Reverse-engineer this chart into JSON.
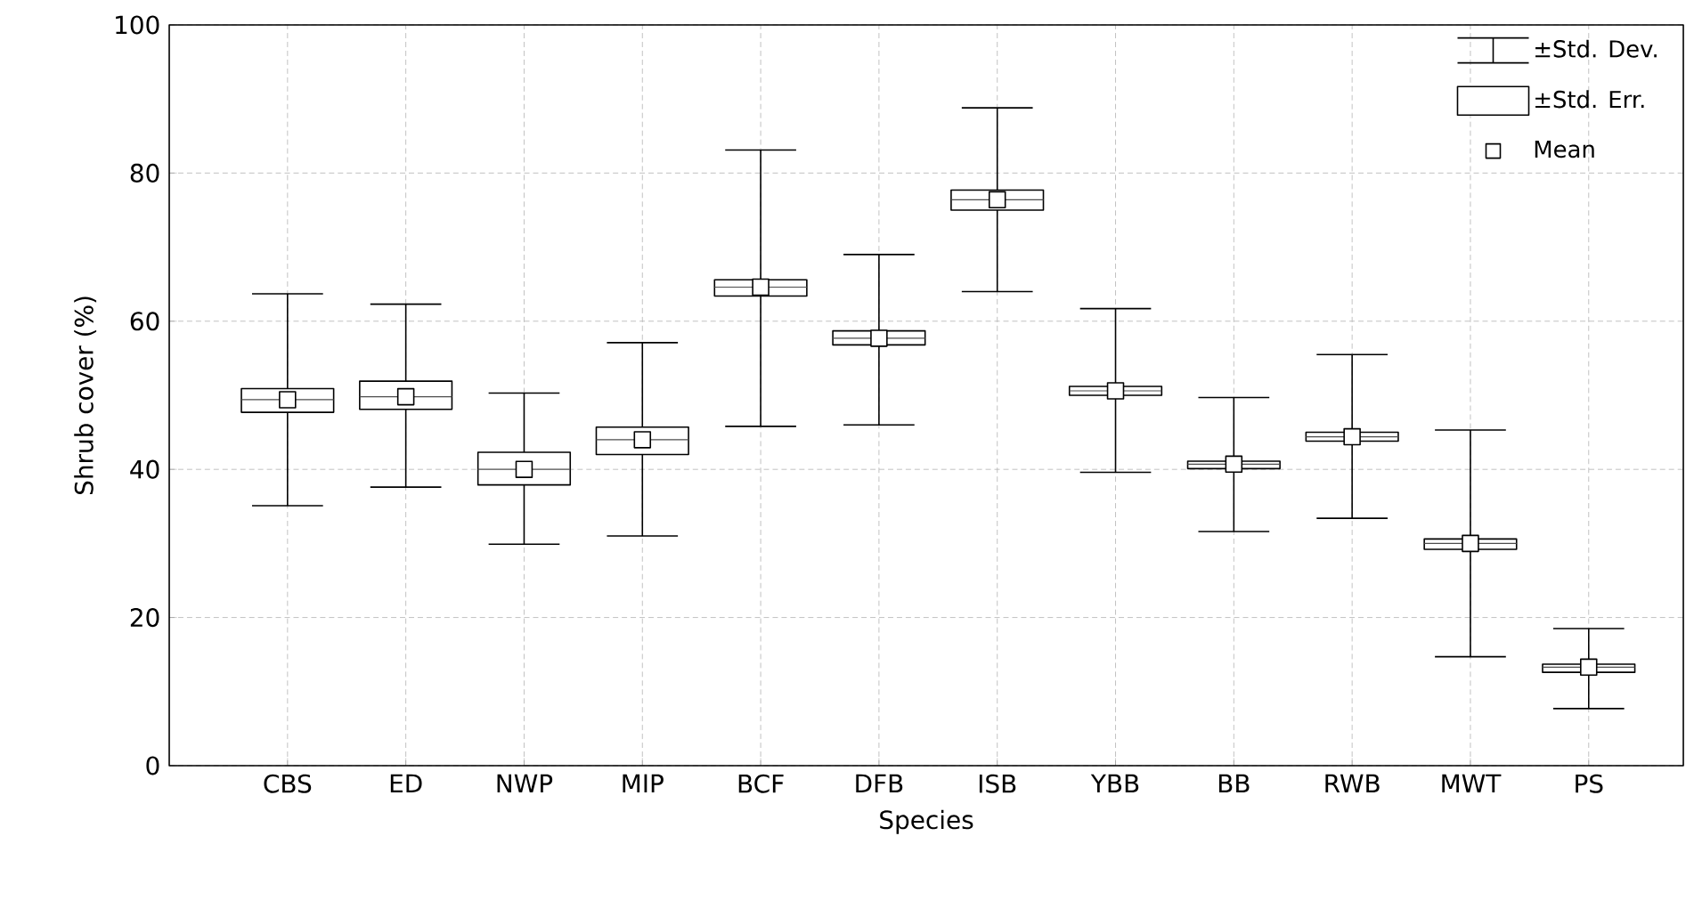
{
  "chart_data": {
    "type": "box",
    "xlabel": "Species",
    "ylabel": "Shrub cover (%)",
    "categories": [
      "CBS",
      "ED",
      "NWP",
      "MIP",
      "BCF",
      "DFB",
      "ISB",
      "YBB",
      "BB",
      "RWB",
      "MWT",
      "PS"
    ],
    "ylim": [
      0,
      100
    ],
    "yticks": [
      0,
      20,
      40,
      60,
      80,
      100
    ],
    "grid": true,
    "marker": "square",
    "annotations": [
      "±Std. Dev.",
      "±Std. Err.",
      "Mean"
    ],
    "boxes": [
      {
        "low": 35.1,
        "q1": 47.7,
        "median": 49.4,
        "q3": 50.9,
        "high": 63.7,
        "mean": 49.4
      },
      {
        "low": 37.6,
        "q1": 48.1,
        "median": 49.8,
        "q3": 51.9,
        "high": 62.3,
        "mean": 49.8
      },
      {
        "low": 29.9,
        "q1": 37.9,
        "median": 40.0,
        "q3": 42.3,
        "high": 50.3,
        "mean": 40.0
      },
      {
        "low": 31.0,
        "q1": 42.0,
        "median": 44.0,
        "q3": 45.7,
        "high": 57.1,
        "mean": 44.0
      },
      {
        "low": 45.8,
        "q1": 63.4,
        "median": 64.6,
        "q3": 65.6,
        "high": 83.1,
        "mean": 64.6
      },
      {
        "low": 46.0,
        "q1": 56.8,
        "median": 57.7,
        "q3": 58.7,
        "high": 69.0,
        "mean": 57.7
      },
      {
        "low": 64.0,
        "q1": 75.0,
        "median": 76.4,
        "q3": 77.7,
        "high": 88.8,
        "mean": 76.4
      },
      {
        "low": 39.6,
        "q1": 50.0,
        "median": 50.6,
        "q3": 51.2,
        "high": 61.7,
        "mean": 50.6
      },
      {
        "low": 31.6,
        "q1": 40.1,
        "median": 40.7,
        "q3": 41.1,
        "high": 49.7,
        "mean": 40.7
      },
      {
        "low": 33.4,
        "q1": 43.8,
        "median": 44.4,
        "q3": 45.0,
        "high": 55.5,
        "mean": 44.4
      },
      {
        "low": 14.7,
        "q1": 29.2,
        "median": 30.0,
        "q3": 30.6,
        "high": 45.3,
        "mean": 30.0
      },
      {
        "low": 7.7,
        "q1": 12.6,
        "median": 13.3,
        "q3": 13.7,
        "high": 18.5,
        "mean": 13.3
      }
    ]
  }
}
